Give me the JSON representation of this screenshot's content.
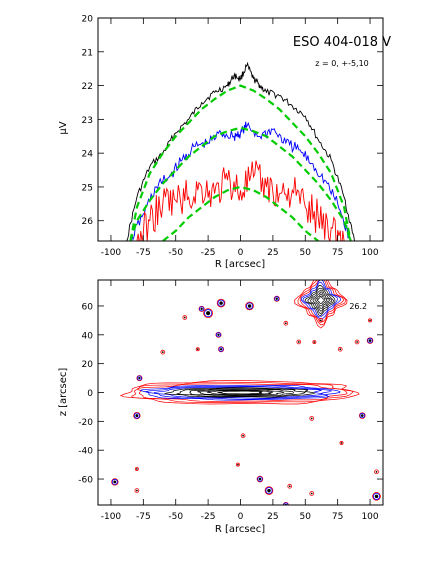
{
  "chart_data": [
    {
      "type": "line",
      "panel": "top",
      "title": "ESO 404-018 V",
      "annotation": "z = 0, +-5,10",
      "xlabel": "R [arcsec]",
      "ylabel": "μV",
      "xlim": [
        -110,
        110
      ],
      "ylim": [
        26.6,
        20
      ],
      "y_inverted": true,
      "x_ticks": [
        -100,
        -75,
        -50,
        -25,
        0,
        25,
        50,
        75,
        100
      ],
      "y_ticks": [
        20,
        21,
        22,
        23,
        24,
        25,
        26
      ],
      "series": [
        {
          "color": "#000000",
          "style": "solid",
          "x": [
            -88,
            -80,
            -70,
            -60,
            -50,
            -40,
            -30,
            -20,
            -10,
            -5,
            0,
            5,
            10,
            15,
            20,
            30,
            40,
            50,
            60,
            70,
            80,
            88
          ],
          "values": [
            26.6,
            25.3,
            24.4,
            24.0,
            23.4,
            23.0,
            22.5,
            22.2,
            22.0,
            21.7,
            21.8,
            21.4,
            21.8,
            22.0,
            22.2,
            22.3,
            22.6,
            22.9,
            23.6,
            24.2,
            25.3,
            26.6
          ]
        },
        {
          "color": "#0000ff",
          "style": "solid",
          "x": [
            -85,
            -75,
            -65,
            -55,
            -45,
            -35,
            -25,
            -15,
            -5,
            0,
            5,
            15,
            25,
            35,
            45,
            55,
            65,
            75,
            85
          ],
          "values": [
            26.6,
            25.8,
            25.0,
            24.7,
            24.2,
            23.8,
            23.7,
            23.4,
            23.5,
            23.4,
            23.2,
            23.5,
            23.3,
            23.7,
            23.9,
            24.3,
            24.8,
            25.5,
            26.6
          ]
        },
        {
          "color": "#ff0000",
          "style": "solid",
          "x": [
            -80,
            -70,
            -60,
            -50,
            -40,
            -30,
            -20,
            -10,
            0,
            10,
            20,
            30,
            40,
            50,
            60,
            70,
            80
          ],
          "values": [
            26.6,
            26.0,
            25.5,
            25.4,
            25.3,
            25.0,
            25.2,
            24.8,
            25.1,
            24.7,
            25.0,
            25.2,
            25.1,
            25.6,
            25.9,
            26.2,
            26.6
          ]
        },
        {
          "color": "#00cc00",
          "style": "dashed",
          "x": [
            -85,
            -80,
            -70,
            -60,
            -50,
            -40,
            -30,
            -20,
            -10,
            0,
            10,
            20,
            30,
            40,
            50,
            60,
            70,
            80,
            85
          ],
          "values": [
            26.6,
            25.6,
            24.6,
            24.0,
            23.5,
            23.1,
            22.7,
            22.4,
            22.15,
            22.0,
            22.15,
            22.4,
            22.7,
            23.1,
            23.5,
            24.0,
            24.6,
            25.6,
            26.6
          ]
        },
        {
          "color": "#00cc00",
          "style": "dashed",
          "x": [
            -85,
            -80,
            -70,
            -60,
            -50,
            -40,
            -30,
            -20,
            -10,
            0,
            10,
            20,
            30,
            40,
            50,
            60,
            70,
            80,
            85
          ],
          "values": [
            26.6,
            26.0,
            25.4,
            24.9,
            24.5,
            24.1,
            23.8,
            23.5,
            23.35,
            23.25,
            23.35,
            23.5,
            23.8,
            24.1,
            24.5,
            24.9,
            25.4,
            26.0,
            26.6
          ]
        },
        {
          "color": "#00cc00",
          "style": "dashed",
          "x": [
            -60,
            -50,
            -40,
            -30,
            -20,
            -10,
            0,
            10,
            20,
            30,
            40,
            50,
            60
          ],
          "values": [
            26.6,
            26.3,
            25.9,
            25.6,
            25.3,
            25.1,
            25.0,
            25.1,
            25.3,
            25.6,
            25.9,
            26.3,
            26.6
          ]
        }
      ]
    },
    {
      "type": "contour",
      "panel": "bottom",
      "xlabel": "R [arcsec]",
      "ylabel": "z [arcsec]",
      "xlim": [
        -110,
        110
      ],
      "ylim": [
        -78,
        78
      ],
      "x_ticks": [
        -100,
        -75,
        -50,
        -25,
        0,
        25,
        50,
        75,
        100
      ],
      "y_ticks": [
        -60,
        -40,
        -20,
        0,
        20,
        40,
        60
      ],
      "annotation": "26.2",
      "annotation_position_data": [
        84,
        60
      ],
      "galaxy": {
        "center": [
          0,
          0
        ],
        "contour_half_lengths": [
          88,
          84,
          80,
          74,
          68,
          62,
          55,
          48,
          40,
          32,
          24,
          16
        ],
        "contour_half_heights": [
          8,
          7,
          6,
          5,
          4.4,
          3.8,
          3.2,
          2.7,
          2.2,
          1.7,
          1.3,
          0.9
        ],
        "contour_colors": [
          "#ff0000",
          "#ff0000",
          "#ff0000",
          "#0000ff",
          "#0000ff",
          "#0000ff",
          "#000000",
          "#000000",
          "#000000",
          "#000000",
          "#000000",
          "#000000"
        ]
      },
      "bright_star": {
        "center": [
          62,
          64
        ],
        "size": 14
      },
      "stars": [
        {
          "x": -25,
          "y": 55,
          "size": 3.5
        },
        {
          "x": -15,
          "y": 62,
          "size": 3
        },
        {
          "x": 7,
          "y": 60,
          "size": 3
        },
        {
          "x": -30,
          "y": 58,
          "size": 2
        },
        {
          "x": 28,
          "y": 65,
          "size": 2
        },
        {
          "x": 35,
          "y": 48,
          "size": 1.5
        },
        {
          "x": -43,
          "y": 52,
          "size": 1.5
        },
        {
          "x": -17,
          "y": 40,
          "size": 2
        },
        {
          "x": -60,
          "y": 28,
          "size": 1.5
        },
        {
          "x": -78,
          "y": 10,
          "size": 2
        },
        {
          "x": -80,
          "y": -16,
          "size": 2.5
        },
        {
          "x": -15,
          "y": 30,
          "size": 2
        },
        {
          "x": -33,
          "y": 30,
          "size": 1.2
        },
        {
          "x": 45,
          "y": 35,
          "size": 1.5
        },
        {
          "x": 57,
          "y": 35,
          "size": 1.2
        },
        {
          "x": 77,
          "y": 30,
          "size": 1.5
        },
        {
          "x": 90,
          "y": 35,
          "size": 1.5
        },
        {
          "x": 100,
          "y": 36,
          "size": 2.2
        },
        {
          "x": 62,
          "y": 50,
          "size": 1.5
        },
        {
          "x": 100,
          "y": 50,
          "size": 1.2
        },
        {
          "x": 94,
          "y": -16,
          "size": 2.2
        },
        {
          "x": 55,
          "y": -18,
          "size": 1.5
        },
        {
          "x": 2,
          "y": -30,
          "size": 1.5
        },
        {
          "x": 78,
          "y": -35,
          "size": 1.2
        },
        {
          "x": 105,
          "y": -55,
          "size": 1.5
        },
        {
          "x": -80,
          "y": -53,
          "size": 1.2
        },
        {
          "x": -97,
          "y": -62,
          "size": 2.5
        },
        {
          "x": -80,
          "y": -68,
          "size": 1.5
        },
        {
          "x": -2,
          "y": -50,
          "size": 1.2
        },
        {
          "x": 15,
          "y": -60,
          "size": 2.2
        },
        {
          "x": 22,
          "y": -68,
          "size": 3
        },
        {
          "x": 38,
          "y": -65,
          "size": 1.5
        },
        {
          "x": 55,
          "y": -70,
          "size": 1.5
        },
        {
          "x": 105,
          "y": -72,
          "size": 3
        },
        {
          "x": 35,
          "y": -78,
          "size": 2
        }
      ]
    }
  ]
}
